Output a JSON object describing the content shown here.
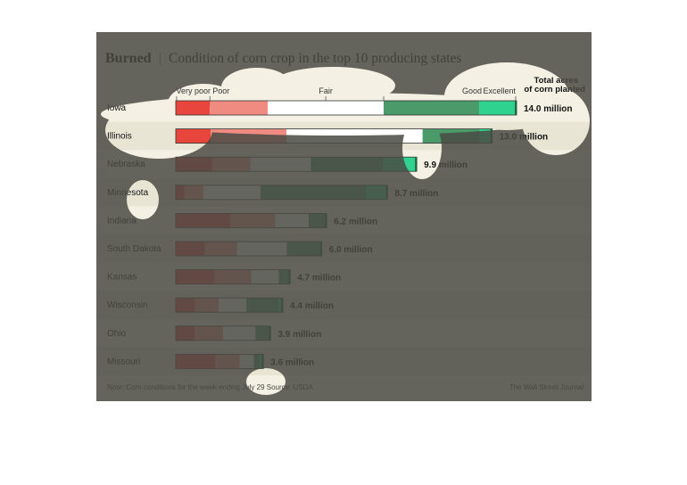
{
  "chart_data": {
    "type": "bar",
    "stacked": true,
    "title_bold": "Burned",
    "title_separator": "|",
    "title": "Condition of corn crop in the top 10 producing states",
    "condition_labels": [
      "Very poor",
      "Poor",
      "Fair",
      "Good",
      "Excellent"
    ],
    "total_header_line1": "Total acres",
    "total_header_line2": "of corn planted",
    "note": "Note: Corn conditions for the week ending July 29   Source: USDA",
    "credit": "The Wall Street Journal",
    "unit": "million",
    "xlim_million_acres": [
      0,
      14.0
    ],
    "colors": {
      "very_poor": "#e8453c",
      "poor": "#f08b82",
      "fair": "#ffffff",
      "good": "#4a9a6a",
      "excellent": "#2fd38f",
      "card_bg": "#f4f1e4",
      "row_alt": "#e9e5d4",
      "overlay": "#4a4a44"
    },
    "states": [
      {
        "name": "Iowa",
        "total": 14.0,
        "total_label": "14.0 million",
        "condition_pct": [
          10,
          17,
          34,
          28,
          11
        ]
      },
      {
        "name": "Illinois",
        "total": 13.0,
        "total_label": "13.0 million",
        "condition_pct": [
          11,
          24,
          43,
          18,
          4
        ]
      },
      {
        "name": "Nebraska",
        "total": 9.9,
        "total_label": "9.9 million",
        "condition_pct": [
          15,
          16,
          25,
          30,
          14
        ]
      },
      {
        "name": "Minnesota",
        "total": 8.7,
        "total_label": "8.7 million",
        "condition_pct": [
          4,
          9,
          27,
          50,
          10
        ]
      },
      {
        "name": "Indiana",
        "total": 6.2,
        "total_label": "6.2 million",
        "condition_pct": [
          36,
          30,
          22,
          12,
          0
        ]
      },
      {
        "name": "South Dakota",
        "total": 6.0,
        "total_label": "6.0 million",
        "condition_pct": [
          20,
          22,
          34,
          24,
          0
        ]
      },
      {
        "name": "Kansas",
        "total": 4.7,
        "total_label": "4.7 million",
        "condition_pct": [
          34,
          32,
          24,
          10,
          0
        ]
      },
      {
        "name": "Wisconsin",
        "total": 4.4,
        "total_label": "4.4 million",
        "condition_pct": [
          18,
          22,
          26,
          30,
          4
        ]
      },
      {
        "name": "Ohio",
        "total": 3.9,
        "total_label": "3.9 million",
        "condition_pct": [
          20,
          30,
          34,
          16,
          0
        ]
      },
      {
        "name": "Missouri",
        "total": 3.6,
        "total_label": "3.6 million",
        "condition_pct": [
          45,
          28,
          16,
          7,
          4
        ]
      }
    ]
  }
}
